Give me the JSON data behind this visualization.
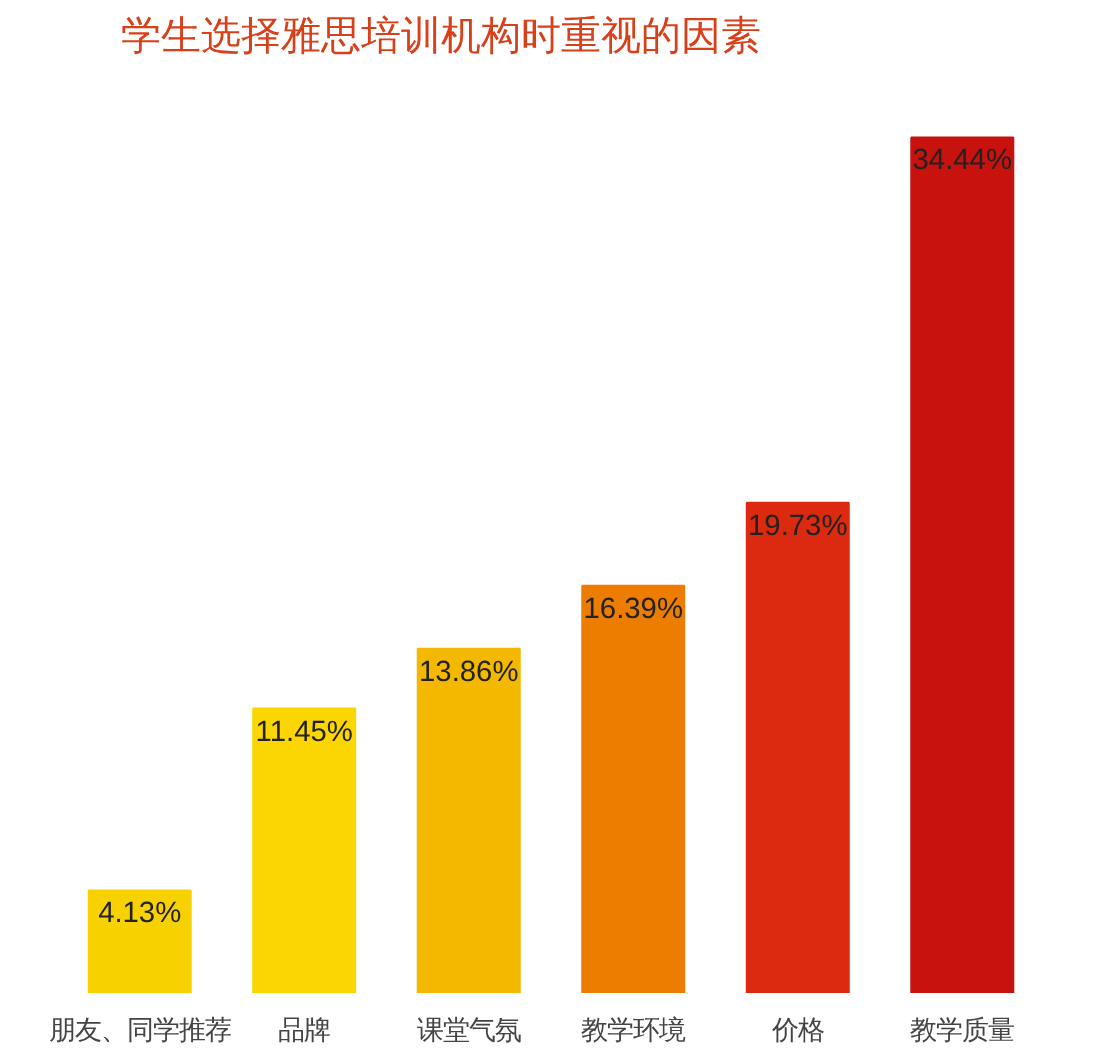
{
  "chart_data": {
    "type": "bar",
    "title": "学生选择雅思培训机构时重视的因素",
    "categories": [
      "朋友、同学推荐",
      "品牌",
      "课堂气氛",
      "教学环境",
      "价格",
      "教学质量"
    ],
    "values": [
      4.13,
      11.45,
      13.86,
      16.39,
      19.73,
      34.44
    ],
    "colors": [
      "#f8d200",
      "#fbd600",
      "#f5b800",
      "#ec7d00",
      "#dc2a10",
      "#c8120e"
    ],
    "value_labels": [
      "4.13%",
      "11.45%",
      "13.86%",
      "16.39%",
      "19.73%",
      "34.44%"
    ],
    "grid": false
  }
}
